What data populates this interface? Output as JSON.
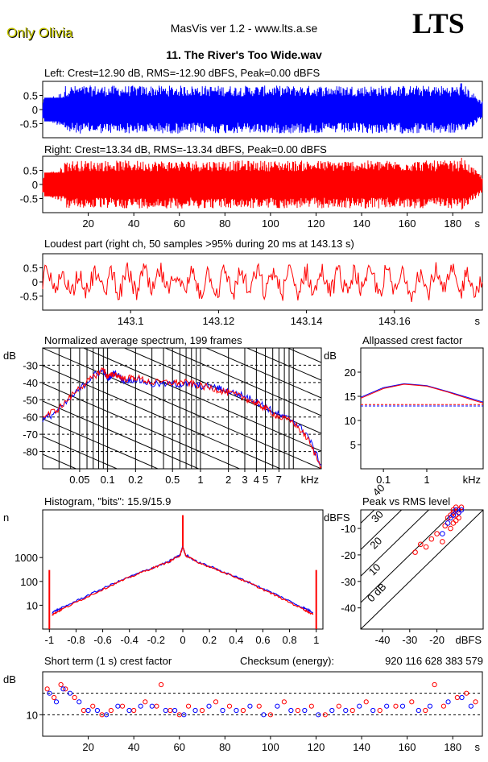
{
  "header": {
    "artist": "Only Olivia",
    "app_title": "MasVis ver 1.2 - www.lts.a.se",
    "logo": "LTS",
    "track_title": "11. The River's Too Wide.wav"
  },
  "colors": {
    "left": "#0000ff",
    "right": "#ff0000",
    "grid": "#000000"
  },
  "chart_data": [
    {
      "id": "left",
      "type": "line",
      "title": "Left: Crest=12.90 dB, RMS=-12.90 dBFS, Peak=0.00 dBFS",
      "yticks": [
        "0.5",
        "0",
        "-0.5"
      ],
      "ytick_values": [
        0.5,
        0,
        -0.5
      ],
      "ylim": [
        -1,
        1
      ],
      "xlim": [
        0,
        193
      ],
      "series": [
        {
          "color": "#0000ff",
          "peak": 1.0,
          "rms": -12.9
        }
      ]
    },
    {
      "id": "right",
      "type": "line",
      "title": "Right: Crest=13.34 dB, RMS=-13.34 dBFS, Peak=0.00 dBFS",
      "yticks": [
        "0.5",
        "0",
        "-0.5"
      ],
      "ytick_values": [
        0.5,
        0,
        -0.5
      ],
      "ylim": [
        -1,
        1
      ],
      "xlim": [
        0,
        193
      ],
      "xticks": [
        "20",
        "40",
        "60",
        "80",
        "100",
        "120",
        "140",
        "160",
        "180",
        "s"
      ],
      "xtick_values": [
        20,
        40,
        60,
        80,
        100,
        120,
        140,
        160,
        180
      ],
      "series": [
        {
          "color": "#ff0000",
          "peak": 1.0,
          "rms": -13.34
        }
      ]
    },
    {
      "id": "loudest",
      "type": "line",
      "title": "Loudest part (right ch, 50 samples >95% during 20 ms at 143.13 s)",
      "yticks": [
        "0.5",
        "0",
        "-0.5"
      ],
      "ytick_values": [
        0.5,
        0,
        -0.5
      ],
      "ylim": [
        -1,
        1
      ],
      "xlim": [
        143.08,
        143.18
      ],
      "xticks": [
        "143.1",
        "143.12",
        "143.14",
        "143.16",
        "s"
      ],
      "xtick_values": [
        143.1,
        143.12,
        143.14,
        143.16
      ],
      "series": [
        {
          "color": "#ff0000"
        }
      ]
    },
    {
      "id": "spectrum",
      "type": "line",
      "title": "Normalized average spectrum, 199 frames",
      "ylabel": "dB",
      "yticks": [
        "-30",
        "-40",
        "-50",
        "-60",
        "-70",
        "-80"
      ],
      "ytick_values": [
        -30,
        -40,
        -50,
        -60,
        -70,
        -80
      ],
      "ylim": [
        -90,
        -20
      ],
      "xlim": [
        0.02,
        20
      ],
      "xscale": "log",
      "xticks": [
        "0.05",
        "0.1",
        "0.2",
        "0.5",
        "1",
        "2",
        "3",
        "4",
        "5",
        "7",
        "kHz"
      ],
      "xtick_values": [
        0.05,
        0.1,
        0.2,
        0.5,
        1,
        2,
        3,
        4,
        5,
        7
      ],
      "series": [
        {
          "color": "#0000ff",
          "x": [
            0.02,
            0.03,
            0.05,
            0.07,
            0.09,
            0.1,
            0.12,
            0.15,
            0.2,
            0.3,
            0.5,
            0.7,
            1,
            1.5,
            2,
            3,
            4,
            5,
            7,
            10,
            14,
            20
          ],
          "y": [
            -62,
            -56,
            -44,
            -36,
            -33,
            -38,
            -34,
            -39,
            -38,
            -41,
            -41,
            -41,
            -42,
            -43,
            -45,
            -48,
            -51,
            -54,
            -59,
            -62,
            -70,
            -88
          ]
        },
        {
          "color": "#ff0000",
          "x": [
            0.02,
            0.03,
            0.05,
            0.07,
            0.09,
            0.1,
            0.12,
            0.15,
            0.2,
            0.3,
            0.5,
            0.7,
            1,
            1.5,
            2,
            3,
            4,
            5,
            7,
            10,
            14,
            20
          ],
          "y": [
            -60,
            -55,
            -43,
            -37,
            -32,
            -37,
            -35,
            -38,
            -37,
            -40,
            -40,
            -40,
            -42,
            -44,
            -46,
            -49,
            -52,
            -55,
            -60,
            -63,
            -72,
            -89
          ]
        }
      ]
    },
    {
      "id": "allpass",
      "type": "line",
      "title": "Allpassed crest factor",
      "ylabel": "dB",
      "yticks": [
        "20",
        "15",
        "10",
        "5"
      ],
      "ytick_values": [
        20,
        15,
        10,
        5
      ],
      "ylim": [
        0,
        25
      ],
      "xlim": [
        0.03,
        20
      ],
      "xscale": "log",
      "xticks": [
        "0.1",
        "1",
        "kHz"
      ],
      "xtick_values": [
        0.1,
        1
      ],
      "reference_lines": [
        13.0,
        13.3
      ],
      "series": [
        {
          "color": "#0000ff",
          "x": [
            0.03,
            0.1,
            0.3,
            1,
            3,
            10,
            20
          ],
          "y": [
            14.8,
            16.8,
            17.6,
            17.2,
            16.0,
            14.6,
            13.8
          ]
        },
        {
          "color": "#ff0000",
          "x": [
            0.03,
            0.1,
            0.3,
            1,
            3,
            10,
            20
          ],
          "y": [
            14.6,
            16.6,
            17.5,
            17.1,
            15.9,
            14.4,
            13.6
          ]
        }
      ]
    },
    {
      "id": "histogram",
      "type": "line",
      "title": "Histogram, \"bits\": 15.9/15.9",
      "ylabel": "n",
      "yscale": "log",
      "yticks": [
        "1000",
        "100",
        "10"
      ],
      "ytick_values": [
        1000,
        100,
        10
      ],
      "ylim": [
        1,
        100000
      ],
      "xlim": [
        -1.05,
        1.05
      ],
      "xticks": [
        "-1",
        "-0.8",
        "-0.6",
        "-0.4",
        "-0.2",
        "0",
        "0.2",
        "0.4",
        "0.6",
        "0.8",
        "1"
      ],
      "xtick_values": [
        -1,
        -0.8,
        -0.6,
        -0.4,
        -0.2,
        0,
        0.2,
        0.4,
        0.6,
        0.8,
        1
      ],
      "series": [
        {
          "color": "#0000ff",
          "x": [
            -0.98,
            -0.9,
            -0.7,
            -0.5,
            -0.3,
            -0.1,
            -0.02,
            0,
            0.02,
            0.1,
            0.3,
            0.5,
            0.7,
            0.9,
            0.98
          ],
          "y": [
            5,
            8,
            28,
            90,
            260,
            700,
            1300,
            3000,
            1300,
            700,
            260,
            90,
            28,
            8,
            5
          ]
        },
        {
          "color": "#ff0000",
          "x": [
            -0.98,
            -0.9,
            -0.7,
            -0.5,
            -0.3,
            -0.1,
            -0.02,
            0,
            0.02,
            0.1,
            0.3,
            0.5,
            0.7,
            0.9,
            0.98
          ],
          "y": [
            4,
            7,
            25,
            85,
            250,
            680,
            1250,
            2800,
            1250,
            680,
            250,
            85,
            25,
            7,
            4
          ]
        }
      ],
      "edge_spikes": [
        {
          "x": -1,
          "y": 300
        },
        {
          "x": 1,
          "y": 300
        }
      ],
      "center_spike": {
        "x": 0,
        "y": 60000
      }
    },
    {
      "id": "peak_rms",
      "type": "scatter",
      "title": "Peak vs RMS level",
      "ylabel": "dBFS",
      "xlabel": "dBFS",
      "yticks": [
        "-10",
        "-20",
        "-30",
        "-40"
      ],
      "ytick_values": [
        -10,
        -20,
        -30,
        -40
      ],
      "ylim": [
        -48,
        -3
      ],
      "xlim": [
        -48,
        -3
      ],
      "xticks": [
        "-40",
        "-30",
        "-20"
      ],
      "xtick_values": [
        -40,
        -30,
        -20
      ],
      "diagonal_labels": [
        "40",
        "30",
        "20",
        "10",
        "0 dB"
      ],
      "diagonal_values": [
        40,
        30,
        20,
        10,
        0
      ],
      "series": [
        {
          "color": "#ff0000",
          "x": [
            -13,
            -14,
            -15,
            -16,
            -12,
            -13,
            -11,
            -17,
            -20,
            -22,
            -24,
            -26,
            -28,
            -14,
            -15,
            -12,
            -18,
            -12,
            -13,
            -14
          ],
          "y": [
            -2,
            -4,
            -5,
            -6,
            -3,
            -7,
            -2,
            -9,
            -12,
            -14,
            -17,
            -16,
            -19,
            -8,
            -10,
            -6,
            -15,
            -4,
            -5,
            -3
          ]
        },
        {
          "color": "#0000ff",
          "x": [
            -13,
            -14,
            -15,
            -12,
            -16,
            -11,
            -18
          ],
          "y": [
            -3,
            -5,
            -6,
            -4,
            -8,
            -3,
            -12
          ]
        }
      ]
    },
    {
      "id": "crest",
      "type": "scatter",
      "title": "Short term (1 s) crest factor",
      "ylabel": "dB",
      "yticks": [
        "10"
      ],
      "ytick_values": [
        10
      ],
      "ylim": [
        5,
        20
      ],
      "xlim": [
        0,
        193
      ],
      "xticks": [
        "20",
        "40",
        "60",
        "80",
        "100",
        "120",
        "140",
        "160",
        "180",
        "s"
      ],
      "xtick_values": [
        20,
        40,
        60,
        80,
        100,
        120,
        140,
        160,
        180
      ],
      "reference_lines": [
        10,
        15
      ],
      "checksum_label": "Checksum (energy):",
      "checksum_value": "920 116 628 383 579",
      "series": [
        {
          "color": "#ff0000",
          "x": [
            2,
            5,
            8,
            10,
            14,
            18,
            22,
            26,
            30,
            35,
            40,
            45,
            50,
            52,
            56,
            60,
            64,
            70,
            76,
            82,
            88,
            95,
            100,
            106,
            112,
            118,
            124,
            130,
            136,
            142,
            148,
            155,
            162,
            168,
            172,
            176,
            182,
            186,
            190
          ],
          "y": [
            16,
            14,
            17,
            16,
            14,
            11,
            12,
            10,
            11,
            12,
            11,
            13,
            12,
            17,
            11,
            10,
            12,
            11,
            13,
            12,
            11,
            12,
            10,
            13,
            11,
            12,
            10,
            12,
            11,
            13,
            11,
            12,
            13,
            11,
            17,
            12,
            14,
            15,
            13
          ]
        },
        {
          "color": "#0000ff",
          "x": [
            3,
            6,
            9,
            12,
            16,
            20,
            24,
            28,
            33,
            38,
            43,
            48,
            54,
            58,
            62,
            67,
            73,
            79,
            85,
            91,
            97,
            103,
            109,
            115,
            121,
            127,
            133,
            139,
            145,
            151,
            158,
            165,
            170,
            178,
            184,
            188
          ],
          "y": [
            15,
            13,
            16,
            15,
            13,
            11,
            11,
            10,
            12,
            11,
            12,
            12,
            11,
            11,
            10,
            11,
            12,
            11,
            11,
            12,
            10,
            12,
            11,
            11,
            10,
            11,
            11,
            12,
            11,
            12,
            12,
            11,
            12,
            13,
            14,
            12
          ]
        }
      ]
    }
  ]
}
